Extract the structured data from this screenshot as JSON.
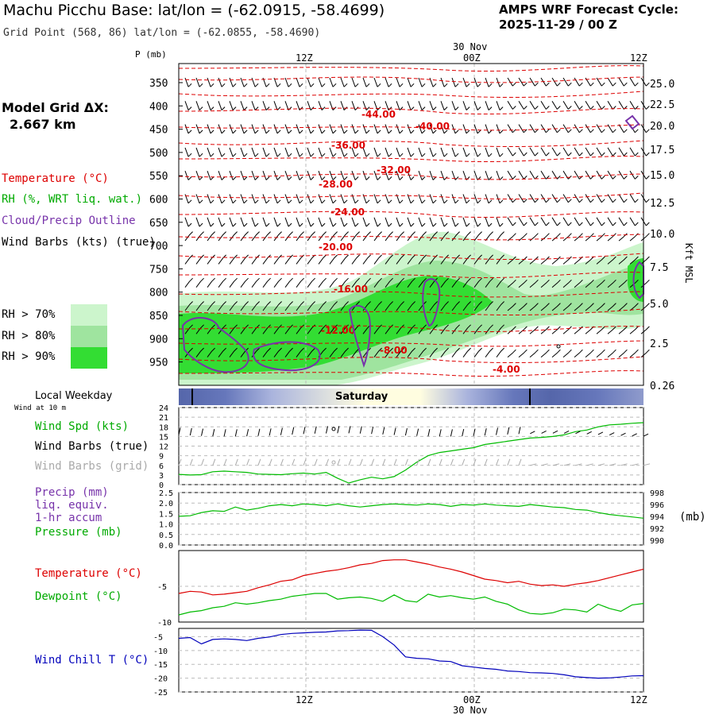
{
  "header": {
    "title": "Machu Picchu Base:  lat/lon = (-62.0915, -58.4699)",
    "subtitle": "Grid Point (568, 86) lat/lon = (-62.0855, -58.4690)",
    "cycle_line1": "AMPS WRF Forecast Cycle:",
    "cycle_line2": "2025-11-29 / 00  Z"
  },
  "time_axis": {
    "top_labels": [
      "12Z",
      "00Z",
      "12Z"
    ],
    "top_date": "30 Nov",
    "bottom_labels": [
      "12Z",
      "00Z",
      "12Z"
    ],
    "bottom_date": "30 Nov"
  },
  "left_legend": {
    "grid_label": "Model Grid ΔX:",
    "grid_value": "2.667 km",
    "temperature": "Temperature (°C)",
    "rh": "RH (%, WRT liq. wat.)",
    "cloud": "Cloud/Precip Outline",
    "wind": "Wind Barbs (kts) (true)",
    "rh70": "RH > 70%",
    "rh80": "RH > 80%",
    "rh90": "RH > 90%",
    "rh70_color": "#ccf5cc",
    "rh80_color": "#9fe49f",
    "rh90_color": "#33dd33",
    "weekday_label": "Local Weekday",
    "wind10": "Wind at 10 m",
    "wind_spd": "Wind Spd (kts)",
    "wind_barbs_true": "Wind Barbs (true)",
    "wind_barbs_grid": "Wind Barbs (grid)",
    "precip1": "Precip (mm)",
    "precip2": "liq. equiv.",
    "precip3": "1-hr accum",
    "pressure": "Pressure (mb)",
    "temp2": "Temperature (°C)",
    "dewpoint": "Dewpoint (°C)",
    "windchill": "Wind Chill T (°C)"
  },
  "weekday": {
    "label": "Saturday"
  },
  "colors": {
    "temperature": "#dd0000",
    "rh_green": "#00bb00",
    "cloud": "#7733aa",
    "windchill": "#0000bb",
    "grid_barbs": "#aaaaaa",
    "weekday_dark": "#5566aa",
    "weekday_light": "#fffde0"
  },
  "chart_data": [
    {
      "type": "line",
      "panel": "cross-section",
      "x_labels": [
        "12Z",
        "00Z",
        "12Z"
      ],
      "y_left_label": "P (mb)",
      "y_left_ticks": [
        "350",
        "400",
        "450",
        "500",
        "550",
        "600",
        "650",
        "700",
        "750",
        "800",
        "850",
        "900",
        "950"
      ],
      "y_right_label": "Kft MSL",
      "y_right_ticks": [
        "25.0",
        "22.5",
        "20.0",
        "17.5",
        "15.0",
        "12.5",
        "10.0",
        "7.5",
        "5.0",
        "2.5",
        "0.26"
      ],
      "temperature_contour_labels": [
        "-44.00",
        "-40.00",
        "-36.00",
        "-32.00",
        "-28.00",
        "-24.00",
        "-20.00",
        "-16.00",
        "-12.00",
        "-8.00",
        "-4.00"
      ]
    },
    {
      "type": "line",
      "panel": "10 m wind speed",
      "y_ticks": [
        "24",
        "21",
        "18",
        "15",
        "12",
        "9",
        "6",
        "3",
        "0"
      ],
      "ylim": [
        0,
        24
      ],
      "series": [
        {
          "name": "Wind Spd (kts)",
          "values": [
            3.2,
            3,
            3.1,
            4,
            4.2,
            4,
            3.8,
            3.3,
            3.2,
            3.1,
            3.4,
            3.6,
            3.3,
            3.8,
            2,
            0.5,
            1.5,
            2.3,
            1.8,
            2.5,
            4.5,
            7,
            9,
            10,
            10.5,
            11,
            11.5,
            12.5,
            13,
            13.5,
            14,
            14.5,
            14.7,
            15,
            15.5,
            16.5,
            17,
            18,
            18.6,
            18.8,
            19.1,
            19.3
          ]
        }
      ]
    },
    {
      "type": "line",
      "panel": "precip / pressure",
      "y_left_ticks": [
        "2.5",
        "2.0",
        "1.5",
        "1.0",
        "0.5",
        "0.0"
      ],
      "y_right_label": "(mb)",
      "y_right_ticks": [
        "998",
        "996",
        "994",
        "992",
        "990"
      ],
      "series": [
        {
          "name": "Pressure (mb)",
          "values": [
            994.6,
            994.7,
            995.2,
            995.5,
            995.4,
            996.1,
            995.6,
            995.9,
            996.3,
            996.5,
            996.3,
            996.6,
            996.5,
            996.3,
            996.6,
            996.3,
            996.1,
            996.3,
            996.5,
            996.6,
            996.5,
            996.4,
            996.6,
            996.5,
            996.2,
            996.5,
            996.4,
            996.6,
            996.4,
            996.3,
            996.2,
            996.5,
            996.3,
            996.1,
            996,
            995.7,
            995.6,
            995.2,
            994.9,
            994.7,
            994.5,
            994.3
          ]
        }
      ]
    },
    {
      "type": "line",
      "panel": "temperature / dewpoint",
      "y_ticks": [
        "-5",
        "-10"
      ],
      "series": [
        {
          "name": "Temperature (°C)",
          "values": [
            -6,
            -5.7,
            -5.8,
            -6.2,
            -6.1,
            -5.9,
            -5.7,
            -5.2,
            -4.8,
            -4.3,
            -4.1,
            -3.5,
            -3.2,
            -2.9,
            -2.7,
            -2.4,
            -2,
            -1.8,
            -1.4,
            -1.3,
            -1.3,
            -1.6,
            -1.9,
            -2.3,
            -2.6,
            -3,
            -3.5,
            -4,
            -4.2,
            -4.5,
            -4.3,
            -4.7,
            -4.9,
            -4.8,
            -5,
            -4.7,
            -4.5,
            -4.2,
            -3.8,
            -3.4,
            -3,
            -2.6
          ]
        },
        {
          "name": "Dewpoint (°C)",
          "values": [
            -9,
            -8.6,
            -8.4,
            -8,
            -7.8,
            -7.3,
            -7.5,
            -7.3,
            -7,
            -6.8,
            -6.4,
            -6.2,
            -6,
            -6,
            -6.8,
            -6.6,
            -6.5,
            -6.7,
            -7.1,
            -6.2,
            -7,
            -7.2,
            -6.1,
            -6.5,
            -6.3,
            -6.6,
            -6.8,
            -6.5,
            -7.1,
            -7.5,
            -8.3,
            -8.8,
            -8.9,
            -8.7,
            -8.2,
            -8.3,
            -8.6,
            -7.5,
            -8.1,
            -8.5,
            -7.6,
            -7.4
          ]
        }
      ]
    },
    {
      "type": "line",
      "panel": "wind chill",
      "y_ticks": [
        "-5",
        "-10",
        "-15",
        "-20",
        "-25"
      ],
      "ylim": [
        -25,
        -2
      ],
      "series": [
        {
          "name": "Wind Chill T (°C)",
          "values": [
            -5.6,
            -5.3,
            -7.6,
            -6,
            -5.8,
            -6,
            -6.4,
            -5.6,
            -5.1,
            -4.2,
            -3.8,
            -3.6,
            -3.4,
            -3.3,
            -2.9,
            -2.8,
            -2.6,
            -2.7,
            -5,
            -8,
            -12.3,
            -12.8,
            -13,
            -13.8,
            -14,
            -15.5,
            -16,
            -16.5,
            -16.8,
            -17.4,
            -17.6,
            -18,
            -18.1,
            -18.3,
            -18.8,
            -19.5,
            -19.8,
            -20,
            -19.9,
            -19.6,
            -19.2,
            -19.1
          ]
        }
      ]
    }
  ]
}
